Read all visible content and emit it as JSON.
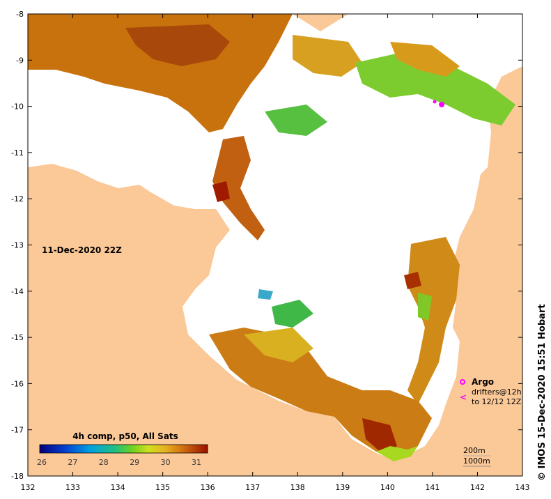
{
  "map": {
    "title_date": "11-Dec-2020 22Z",
    "credit": "© IMOS 15-Dec-2020 15:51 Hobart",
    "x_ticks": [
      "132",
      "133",
      "134",
      "135",
      "136",
      "137",
      "138",
      "139",
      "140",
      "141",
      "142",
      "143"
    ],
    "y_ticks": [
      "-8",
      "-9",
      "-10",
      "-11",
      "-12",
      "-13",
      "-14",
      "-15",
      "-16",
      "-17",
      "-18"
    ],
    "colorbar": {
      "title": "4h comp, p50, All Sats",
      "labels": [
        "26",
        "27",
        "28",
        "29",
        "30",
        "31"
      ]
    },
    "legend": {
      "argo_label": "Argo",
      "drifters_line1": "drifters@12h",
      "drifters_line2": "to 12/12 12Z",
      "argo_color": "#ff00ff",
      "drifter_symbol": "<"
    },
    "depth_contours": {
      "line1": "200m",
      "line2": "1000m"
    },
    "colors": {
      "land": "#fbc898",
      "no_data": "#ffffff",
      "sst_warm": "#c86a10",
      "sst_hot": "#a01a00",
      "sst_mid": "#d8b020",
      "sst_cool": "#50c030"
    }
  }
}
